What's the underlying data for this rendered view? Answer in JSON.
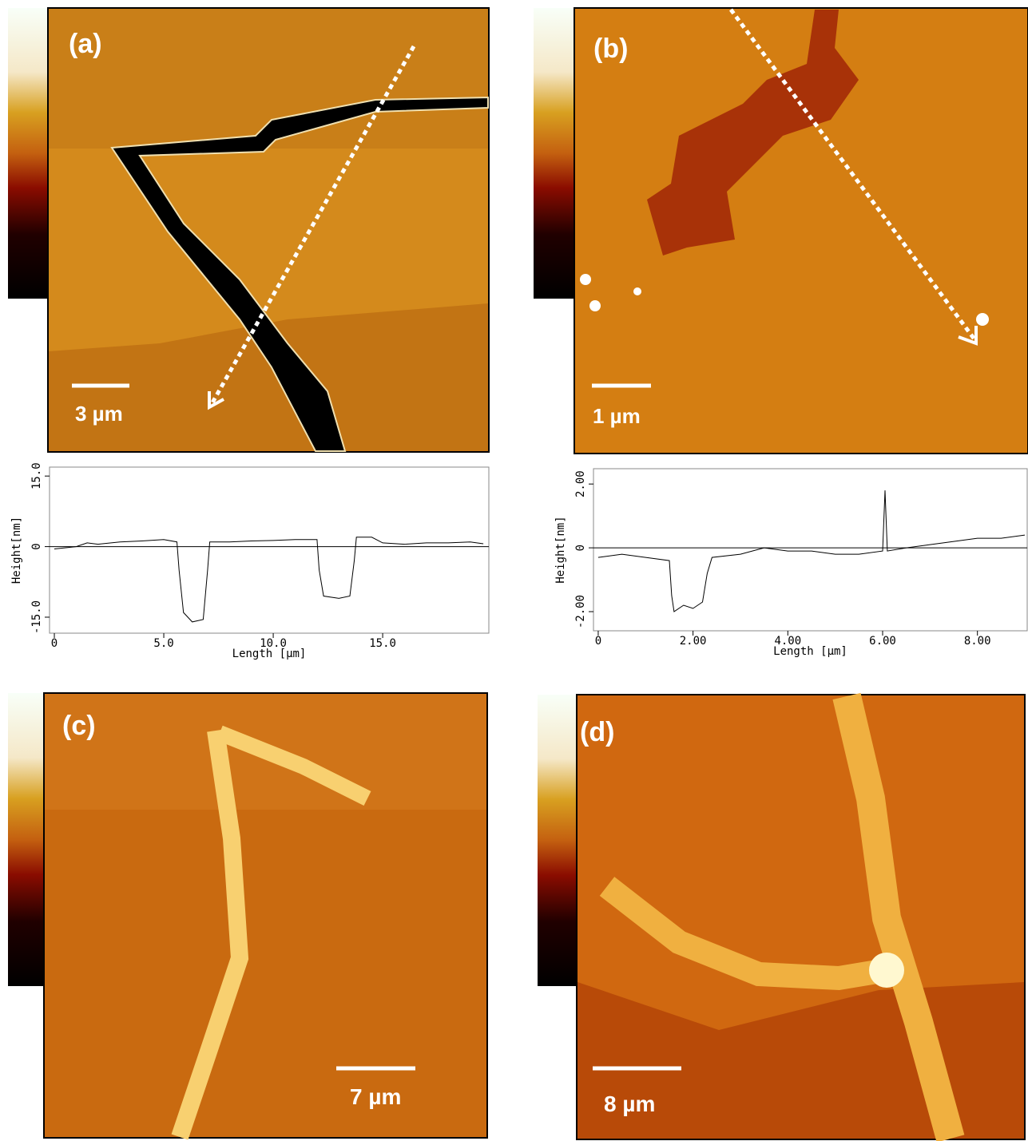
{
  "panels": [
    {
      "label": "(a)",
      "scale_bar": "3 µm"
    },
    {
      "label": "(b)",
      "scale_bar": "1 µm"
    },
    {
      "label": "(c)",
      "scale_bar": "7 µm"
    },
    {
      "label": "(d)",
      "scale_bar": "8 µm"
    }
  ],
  "chart_data": [
    {
      "type": "line",
      "x_label": "Length [µm]",
      "y_label": "Height[nm]",
      "color": "#000000",
      "xlim": [
        -0.22,
        19.85
      ],
      "ylim": [
        -18.4,
        16.9
      ],
      "xticks": [
        0,
        {
          "value": 5,
          "label": "5.0"
        },
        {
          "value": 10,
          "label": "10.0"
        },
        {
          "value": 15,
          "label": "15.0"
        }
      ],
      "yticks": [
        {
          "value": 15,
          "label": "15.0"
        },
        0,
        {
          "value": -15,
          "label": "-15.0"
        }
      ],
      "x": [
        0,
        1,
        1.5,
        2,
        3,
        4,
        5,
        5.6,
        5.7,
        5.9,
        6.3,
        6.8,
        7,
        7.1,
        8,
        9,
        10,
        11,
        12,
        12.1,
        12.3,
        13,
        13.5,
        13.7,
        13.8,
        14.5,
        15,
        16,
        17,
        18,
        19,
        19.6
      ],
      "values": [
        -0.5,
        0,
        0.8,
        0.5,
        1,
        1.2,
        1.5,
        1,
        -5,
        -14,
        -16,
        -15.5,
        -5,
        1,
        1,
        1.2,
        1.3,
        1.5,
        1.5,
        -5,
        -10.5,
        -11,
        -10.5,
        -3,
        2,
        2,
        0.8,
        0.5,
        0.8,
        0.8,
        1,
        0.6
      ]
    },
    {
      "type": "line",
      "x_label": "Length [µm]",
      "y_label": "Height[nm]",
      "color": "#000000",
      "xlim": [
        -0.1,
        9.05
      ],
      "ylim": [
        -2.6,
        2.48
      ],
      "xticks": [
        0,
        {
          "value": 2,
          "label": "2.00"
        },
        {
          "value": 4,
          "label": "4.00"
        },
        {
          "value": 6,
          "label": "6.00"
        },
        {
          "value": 8,
          "label": "8.00"
        }
      ],
      "yticks": [
        {
          "value": 2,
          "label": "2.00"
        },
        0,
        {
          "value": -2,
          "label": "-2.00"
        }
      ],
      "x": [
        0,
        0.5,
        1,
        1.5,
        1.55,
        1.6,
        1.8,
        2,
        2.2,
        2.3,
        2.4,
        3,
        3.5,
        4,
        4.5,
        5,
        5.5,
        6,
        6.05,
        6.1,
        6.5,
        7,
        7.5,
        8,
        8.5,
        9
      ],
      "values": [
        -0.3,
        -0.2,
        -0.3,
        -0.4,
        -1.5,
        -2.0,
        -1.8,
        -1.9,
        -1.7,
        -0.8,
        -0.3,
        -0.2,
        0,
        -0.1,
        -0.1,
        -0.2,
        -0.2,
        -0.1,
        1.8,
        -0.1,
        0,
        0.1,
        0.2,
        0.3,
        0.3,
        0.4
      ]
    }
  ]
}
